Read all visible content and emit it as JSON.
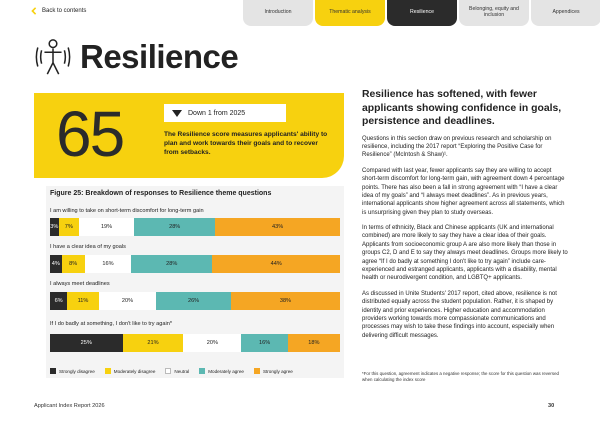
{
  "nav": {
    "back_label": "Back to contents",
    "tabs": [
      {
        "label": "Introduction",
        "style": "grey"
      },
      {
        "label": "Thematic analysis",
        "style": "yellow"
      },
      {
        "label": "Resilience",
        "style": "dark"
      },
      {
        "label": "Belonging, equity and inclusion",
        "style": "grey"
      },
      {
        "label": "Appendices",
        "style": "grey"
      }
    ]
  },
  "title": "Resilience",
  "title_icon": "person-balance-icon",
  "score": {
    "value": "65",
    "change": "Down 1 from 2025",
    "description": "The Resilience score measures applicants' ability to plan and work towards their goals and to recover from setbacks."
  },
  "chart_data": {
    "type": "bar",
    "orientation": "horizontal-stacked",
    "title": "Figure 25: Breakdown of responses to Resilience theme questions",
    "categories": [
      "I am willing to take on short-term discomfort for long-term gain",
      "I have a clear idea of my goals",
      "I always meet deadlines",
      "If I do badly at something, I don't like to try again*"
    ],
    "series": [
      {
        "name": "Strongly disagree",
        "color": "#2b2b2b",
        "values": [
          3,
          4,
          6,
          25
        ]
      },
      {
        "name": "Moderately disagree",
        "color": "#f7d10f",
        "values": [
          7,
          8,
          11,
          21
        ]
      },
      {
        "name": "Neutral",
        "color": "#ffffff",
        "values": [
          19,
          16,
          20,
          20
        ]
      },
      {
        "name": "Moderately agree",
        "color": "#5cb8b2",
        "values": [
          28,
          28,
          26,
          16
        ]
      },
      {
        "name": "Strongly agree",
        "color": "#f5a623",
        "values": [
          43,
          44,
          38,
          18
        ]
      }
    ],
    "value_suffix": "%",
    "legend_position": "bottom"
  },
  "body": {
    "heading": "Resilience has softened, with fewer applicants showing confidence in goals, persistence and deadlines.",
    "paragraphs": [
      "Questions in this section draw on previous research and scholarship on resilience, including the 2017 report “Exploring the Positive Case for Resilience” (McIntosh & Shaw)¹.",
      "Compared with last year, fewer applicants say they are willing to accept short-term discomfort for long-term gain, with agreement down 4 percentage points. There has also been a fall in strong agreement with “I have a clear idea of my goals” and “I always meet deadlines”. As in previous years, international applicants show higher agreement across all statements, which is unsurprising given they plan to study overseas.",
      "In terms of ethnicity, Black and Chinese applicants (UK and international combined) are more likely to say they have a clear idea of their goals. Applicants from socioeconomic group A are also more likely than those in groups C2, D and E to say they always meet deadlines. Groups more likely to agree “If I do badly at something I don't like to try again” include care-experienced and estranged applicants, applicants with a disability, mental health or neurodivergent condition, and LGBTQ+ applicants.",
      "As discussed in Unite Students' 2017 report, cited above, resilience is not distributed equally across the student population. Rather, it is shaped by identity and prior experiences. Higher education and accommodation providers working towards more compassionate communications and processes may wish to take these findings into account, especially when delivering difficult messages."
    ],
    "footnote": "*For this question, agreement indicates a negative response; the score for this question was reversed when calculating the index score"
  },
  "footer": {
    "report": "Applicant Index Report 2026",
    "page": "30"
  }
}
